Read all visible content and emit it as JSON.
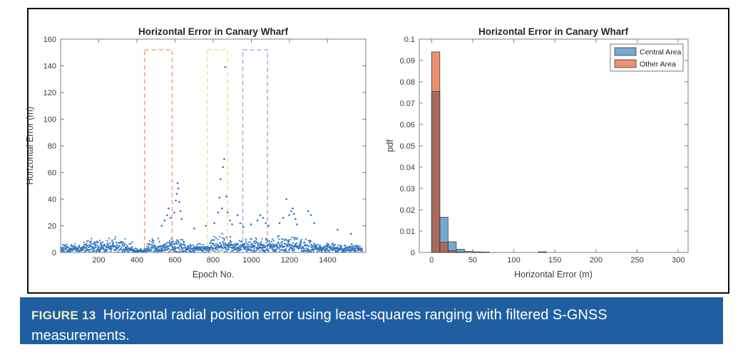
{
  "colors": {
    "scatter_point": "#2E74C0",
    "hist_central_fill": "#74A9D1",
    "hist_other_fill": "#EB9271",
    "hist_overlap_fill": "#A9695B",
    "hist_edge": "#3F3F3F",
    "axis_line": "#7F7F7F",
    "tick_text": "#3B3B3B",
    "title_text": "#262626",
    "caption_bg": "#1F5FA1",
    "caption_label_text": "#F2ECC9",
    "caption_body_text": "#FFFFFF",
    "frame_border": "#0B0B0B"
  },
  "caption": {
    "label": "FIGURE 13",
    "text": "Horizontal radial position error using least-squares ranging with filtered S-GNSS measurements."
  },
  "chart_data": [
    {
      "type": "scatter",
      "title": "Horizontal Error in Canary Wharf",
      "xlabel": "Epoch No.",
      "ylabel": "Horizontal Error (m)",
      "xlim": [
        0,
        1600
      ],
      "ylim": [
        0,
        160
      ],
      "xticks": [
        200,
        400,
        600,
        800,
        1000,
        1200,
        1400
      ],
      "yticks": [
        0,
        20,
        40,
        60,
        80,
        100,
        120,
        140,
        160
      ],
      "grid": false,
      "legend": null,
      "point_color": "#2E74C0",
      "highlight_boxes": [
        {
          "name": "orange-dashed-box",
          "x_start": 440,
          "x_end": 585,
          "y_start": 0,
          "y_end": 152,
          "color": "#F0A17E"
        },
        {
          "name": "yellow-dashed-box",
          "x_start": 770,
          "x_end": 875,
          "y_start": 0,
          "y_end": 152,
          "color": "#F5D9A0"
        },
        {
          "name": "purple-dashed-box",
          "x_start": 955,
          "x_end": 1085,
          "y_start": 0,
          "y_end": 152,
          "color": "#C49FD8"
        }
      ],
      "noise_profile": {
        "seed": 7,
        "comment": "dense noise band of ~1600 epochs; segments = [epoch_start, epoch_end, base_level_m, top_amplitude_m]",
        "segments": [
          [
            2,
            120,
            3,
            7
          ],
          [
            120,
            250,
            4.5,
            11
          ],
          [
            250,
            340,
            5.5,
            14
          ],
          [
            340,
            378,
            3,
            8
          ],
          [
            378,
            452,
            1.3,
            3.5
          ],
          [
            452,
            562,
            4.5,
            11
          ],
          [
            562,
            652,
            5.5,
            14
          ],
          [
            652,
            705,
            3,
            7
          ],
          [
            705,
            782,
            3.5,
            9
          ],
          [
            782,
            905,
            5.5,
            13
          ],
          [
            905,
            1012,
            5,
            12
          ],
          [
            1012,
            1122,
            5.5,
            12
          ],
          [
            1122,
            1262,
            6,
            14
          ],
          [
            1262,
            1342,
            4.5,
            11
          ],
          [
            1342,
            1432,
            3.5,
            8
          ],
          [
            1432,
            1582,
            3,
            7.5
          ]
        ],
        "outliers": [
          [
            530,
            20
          ],
          [
            545,
            24
          ],
          [
            558,
            28
          ],
          [
            566,
            33
          ],
          [
            576,
            26
          ],
          [
            596,
            30
          ],
          [
            604,
            39
          ],
          [
            609,
            44
          ],
          [
            613,
            52
          ],
          [
            617,
            48
          ],
          [
            622,
            38
          ],
          [
            628,
            31
          ],
          [
            634,
            25
          ],
          [
            700,
            18
          ],
          [
            762,
            20
          ],
          [
            806,
            22
          ],
          [
            826,
            30
          ],
          [
            833,
            41
          ],
          [
            839,
            55
          ],
          [
            846,
            33
          ],
          [
            852,
            64
          ],
          [
            858,
            70
          ],
          [
            862,
            139
          ],
          [
            869,
            42
          ],
          [
            876,
            30
          ],
          [
            888,
            24
          ],
          [
            899,
            21
          ],
          [
            928,
            28
          ],
          [
            942,
            22
          ],
          [
            958,
            19
          ],
          [
            998,
            21
          ],
          [
            1032,
            24
          ],
          [
            1047,
            28
          ],
          [
            1062,
            26
          ],
          [
            1076,
            22
          ],
          [
            1090,
            20
          ],
          [
            1148,
            22
          ],
          [
            1167,
            26
          ],
          [
            1184,
            40
          ],
          [
            1199,
            28
          ],
          [
            1209,
            31
          ],
          [
            1217,
            33
          ],
          [
            1224,
            29
          ],
          [
            1231,
            25
          ],
          [
            1239,
            21
          ],
          [
            1298,
            31
          ],
          [
            1312,
            28
          ],
          [
            1329,
            22
          ],
          [
            1452,
            17
          ],
          [
            1522,
            14
          ]
        ]
      }
    },
    {
      "type": "histogram",
      "title": "Horizontal Error in Canary Wharf",
      "xlabel": "Horizontal Error (m)",
      "ylabel": "pdf",
      "xlim": [
        -15,
        312
      ],
      "ylim": [
        0,
        0.1
      ],
      "xticks": [
        0,
        50,
        100,
        150,
        200,
        250,
        300
      ],
      "ytick_labels": [
        "0",
        "0.01",
        "0.02",
        "0.03",
        "0.04",
        "0.05",
        "0.06",
        "0.07",
        "0.08",
        "0.09",
        "0.1"
      ],
      "bin_start": 0,
      "bin_width": 10,
      "series": [
        {
          "name": "Central Area",
          "color": "#74A9D1",
          "values": [
            0.0755,
            0.0165,
            0.005,
            0.0015,
            0.0005,
            0.0003,
            0.0002,
            0,
            0,
            0,
            0,
            0,
            0,
            0.0003
          ]
        },
        {
          "name": "Other Area",
          "color": "#EB9271",
          "values": [
            0.094,
            0.0048,
            0.0008,
            0.0002,
            0,
            0,
            0.0002,
            0,
            0,
            0,
            0,
            0,
            0,
            0
          ]
        }
      ],
      "overlap_color": "#A9695B",
      "edge_color": "#3F3F3F",
      "legend": {
        "position": "top-right",
        "entries": [
          "Central Area",
          "Other Area"
        ]
      }
    }
  ]
}
